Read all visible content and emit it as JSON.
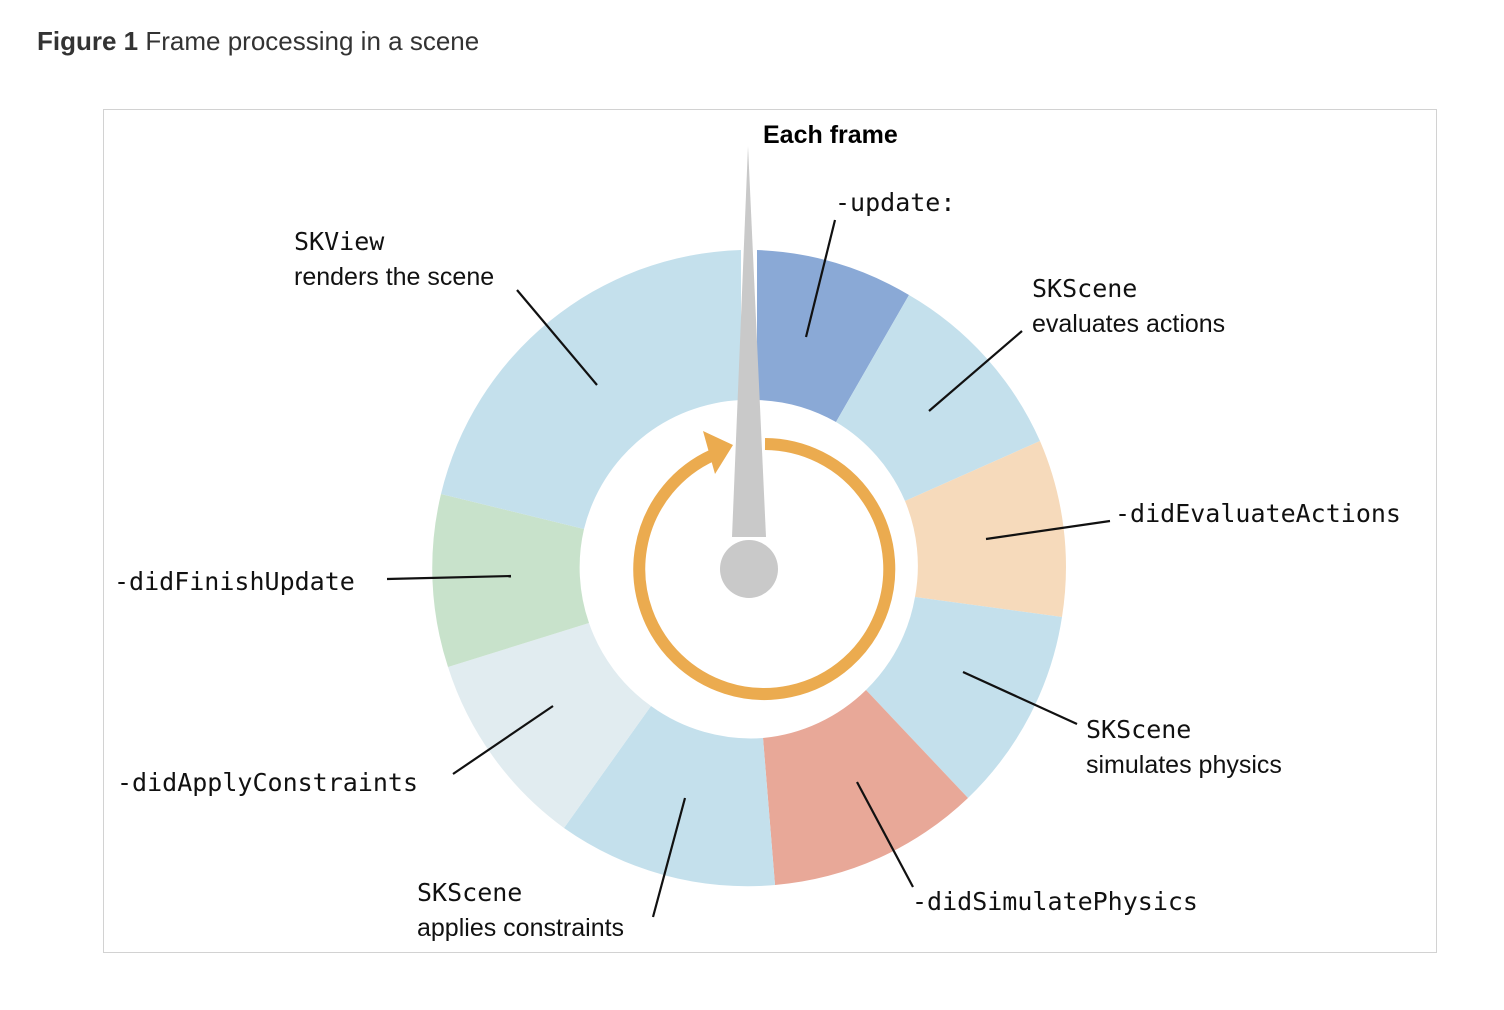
{
  "caption": {
    "figure_number": "Figure 1",
    "title": "Frame processing in a scene"
  },
  "diagram": {
    "top_label": "Each frame",
    "colors": {
      "update": "#8aa9d6",
      "scene_steps": "#c4e0ec",
      "did_evaluate_actions": "#f6dabb",
      "did_simulate_physics": "#e8a898",
      "did_apply_constraints": "#e1ecf0",
      "did_finish_update": "#c8e2cb",
      "cycle_arrow": "#ebab4f",
      "pointer": "#c9c9c9"
    },
    "segments": [
      {
        "id": "update",
        "label": "-update:"
      },
      {
        "id": "evaluates-actions",
        "line1": "SKScene",
        "line2": "evaluates actions"
      },
      {
        "id": "did-evaluate-actions",
        "label": "-didEvaluateActions"
      },
      {
        "id": "simulates-physics",
        "line1": "SKScene",
        "line2": "simulates physics"
      },
      {
        "id": "did-simulate-physics",
        "label": "-didSimulatePhysics"
      },
      {
        "id": "applies-constraints",
        "line1": "SKScene",
        "line2": "applies constraints"
      },
      {
        "id": "did-apply-constraints",
        "label": "-didApplyConstraints"
      },
      {
        "id": "did-finish-update",
        "label": "-didFinishUpdate"
      },
      {
        "id": "renders-scene",
        "line1": "SKView",
        "line2": "renders the scene"
      }
    ]
  }
}
